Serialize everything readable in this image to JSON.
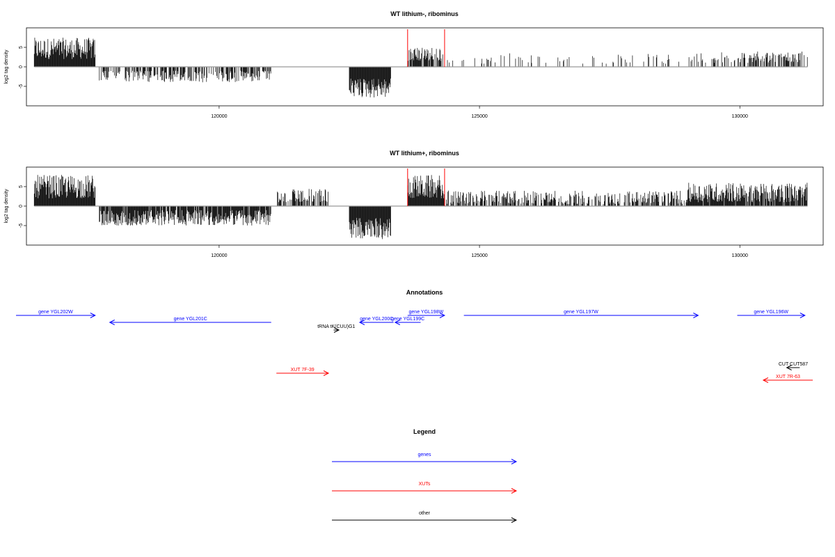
{
  "panels": [
    {
      "title": "WT lithium-, ribominus",
      "ylabel": "log2 tag density"
    },
    {
      "title": "WT lithium+, ribominus",
      "ylabel": "log2 tag density"
    }
  ],
  "annotations_title": "Annotations",
  "legend_title": "Legend",
  "colors": {
    "gene": "#0000ff",
    "xut": "#ff0000",
    "other": "#000000",
    "signal": "#000000",
    "baseline": "#999999",
    "marker": "#ff0000"
  },
  "chart_data": [
    {
      "type": "bar",
      "title": "WT lithium-, ribominus",
      "xlabel": "",
      "ylabel": "log2 tag density",
      "xlim": [
        116300,
        131600
      ],
      "ylim": [
        -10,
        10
      ],
      "x_ticks": [
        120000,
        125000,
        130000
      ],
      "y_ticks": [
        -5,
        0,
        5
      ],
      "grid": false,
      "markers": [
        123620,
        124330
      ],
      "segments": [
        {
          "from": 116450,
          "to": 117620,
          "density": 1.0,
          "sign": 1,
          "min": 2.0,
          "max": 7.5
        },
        {
          "from": 117700,
          "to": 121000,
          "density": 0.55,
          "sign": -1,
          "min": 1.0,
          "max": 4.0
        },
        {
          "from": 121800,
          "to": 122200,
          "density": 0.03,
          "sign": 1,
          "min": 1.0,
          "max": 3.0
        },
        {
          "from": 122500,
          "to": 123300,
          "density": 1.0,
          "sign": -1,
          "min": 3.0,
          "max": 8.0
        },
        {
          "from": 123620,
          "to": 124300,
          "density": 0.8,
          "sign": 1,
          "min": 1.5,
          "max": 5.0
        },
        {
          "from": 124300,
          "to": 125300,
          "density": 0.05,
          "sign": 1,
          "min": 0.8,
          "max": 2.5
        },
        {
          "from": 125300,
          "to": 129500,
          "density": 0.12,
          "sign": 1,
          "min": 0.8,
          "max": 3.5
        },
        {
          "from": 129500,
          "to": 131300,
          "density": 0.5,
          "sign": 1,
          "min": 1.0,
          "max": 4.0
        }
      ]
    },
    {
      "type": "bar",
      "title": "WT lithium+, ribominus",
      "xlabel": "",
      "ylabel": "log2 tag density",
      "xlim": [
        116300,
        131600
      ],
      "ylim": [
        -10,
        10
      ],
      "x_ticks": [
        120000,
        125000,
        130000
      ],
      "y_ticks": [
        -5,
        0,
        5
      ],
      "grid": false,
      "markers": [
        123620,
        124330
      ],
      "segments": [
        {
          "from": 116450,
          "to": 117620,
          "density": 1.0,
          "sign": 1,
          "min": 2.0,
          "max": 8.0
        },
        {
          "from": 117700,
          "to": 121000,
          "density": 0.9,
          "sign": -1,
          "min": 1.0,
          "max": 5.0
        },
        {
          "from": 121100,
          "to": 122100,
          "density": 0.6,
          "sign": 1,
          "min": 1.0,
          "max": 4.5
        },
        {
          "from": 122500,
          "to": 123300,
          "density": 1.0,
          "sign": -1,
          "min": 3.0,
          "max": 8.5
        },
        {
          "from": 123620,
          "to": 124300,
          "density": 1.0,
          "sign": 1,
          "min": 2.0,
          "max": 8.0
        },
        {
          "from": 124300,
          "to": 129000,
          "density": 0.55,
          "sign": 1,
          "min": 0.5,
          "max": 4.0
        },
        {
          "from": 129000,
          "to": 131300,
          "density": 0.9,
          "sign": 1,
          "min": 1.0,
          "max": 6.0
        }
      ]
    }
  ],
  "features": [
    {
      "label": "gene YGL202W",
      "kind": "gene",
      "start": 116100,
      "end": 117620,
      "strand": "+",
      "row": 0
    },
    {
      "label": "gene YGL201C",
      "kind": "gene",
      "start": 117900,
      "end": 121000,
      "strand": "-",
      "row": 1
    },
    {
      "label": "tRNA tK(CUU)G1",
      "kind": "other",
      "start": 122200,
      "end": 122300,
      "strand": "+",
      "row": 2
    },
    {
      "label": "gene YGL200C",
      "kind": "gene",
      "start": 122700,
      "end": 123350,
      "strand": "-",
      "row": 1
    },
    {
      "label": "gene YGL199C",
      "kind": "gene",
      "start": 123380,
      "end": 123870,
      "strand": "-",
      "row": 1
    },
    {
      "label": "gene YGL198W",
      "kind": "gene",
      "start": 123620,
      "end": 124330,
      "strand": "+",
      "row": 0
    },
    {
      "label": "gene YGL197W",
      "kind": "gene",
      "start": 124700,
      "end": 129200,
      "strand": "+",
      "row": 0
    },
    {
      "label": "gene YGL196W",
      "kind": "gene",
      "start": 129950,
      "end": 131250,
      "strand": "+",
      "row": 0
    },
    {
      "label": "XUT 7F-39",
      "kind": "xut",
      "start": 121100,
      "end": 122100,
      "strand": "+",
      "row": 3
    },
    {
      "label": "CUT CUT587",
      "kind": "other",
      "start": 130900,
      "end": 131150,
      "strand": "-",
      "row": 4
    },
    {
      "label": "XUT 7R-63",
      "kind": "xut",
      "start": 130450,
      "end": 131400,
      "strand": "-",
      "row": 5
    }
  ],
  "legend": [
    {
      "label": "genes",
      "kind": "gene"
    },
    {
      "label": "XUTs",
      "kind": "xut"
    },
    {
      "label": "other",
      "kind": "other"
    }
  ]
}
